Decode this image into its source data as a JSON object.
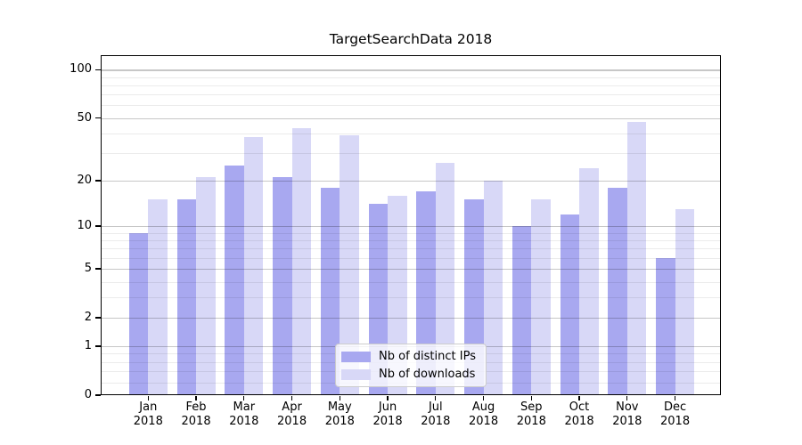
{
  "chart_data": {
    "type": "bar",
    "title": "TargetSearchData 2018",
    "categories": [
      "Jan 2018",
      "Feb 2018",
      "Mar 2018",
      "Apr 2018",
      "May 2018",
      "Jun 2018",
      "Jul 2018",
      "Aug 2018",
      "Sep 2018",
      "Oct 2018",
      "Nov 2018",
      "Dec 2018"
    ],
    "series": [
      {
        "name": "Nb of distinct IPs",
        "color": "#a8a8f0",
        "values": [
          9,
          15,
          25,
          21,
          18,
          14,
          17,
          15,
          10,
          12,
          18,
          6
        ]
      },
      {
        "name": "Nb of downloads",
        "color": "#d8d8f7",
        "values": [
          15,
          21,
          38,
          43,
          39,
          16,
          26,
          20,
          15,
          24,
          47,
          13
        ]
      }
    ],
    "xlabel": "",
    "ylabel": "",
    "y_scale": "log(1+y)",
    "ylim": [
      0,
      124
    ],
    "y_major_ticks": [
      0,
      1,
      2,
      5,
      10,
      20,
      50,
      100
    ],
    "y_minor_ticks": [
      0.2,
      0.4,
      0.6,
      0.8,
      3,
      4,
      6,
      7,
      8,
      9,
      30,
      40,
      60,
      70,
      80,
      90
    ],
    "grid": true,
    "legend_position": "lower center",
    "background_color": "#ffffff",
    "major_grid_color": "#b0b0b0",
    "minor_grid_color": "#e5e5e5"
  }
}
